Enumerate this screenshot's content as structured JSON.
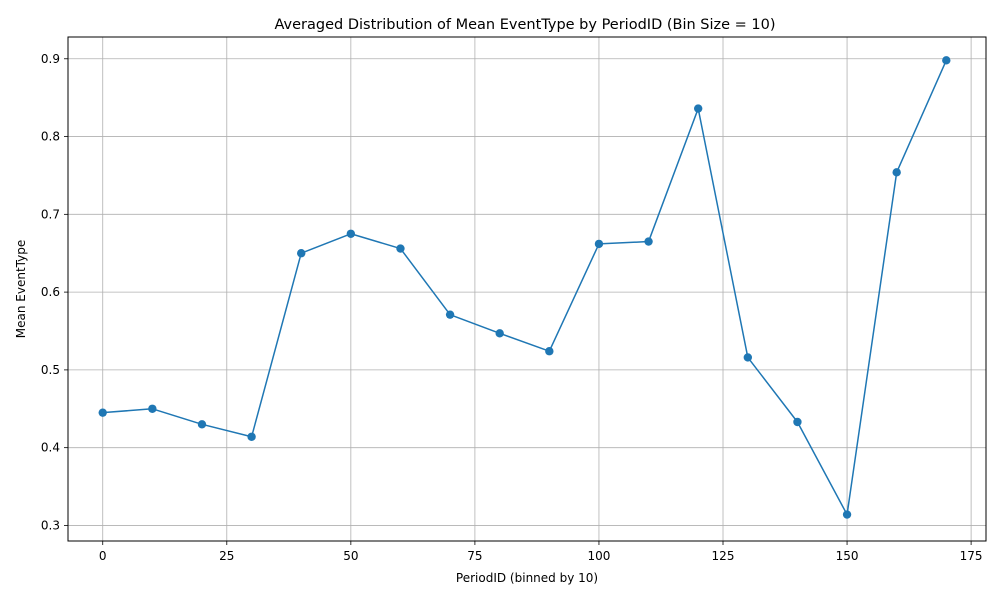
{
  "chart_data": {
    "type": "line",
    "title": "Averaged Distribution of Mean EventType by PeriodID (Bin Size = 10)",
    "xlabel": "PeriodID (binned by 10)",
    "ylabel": "Mean EventType",
    "xlim": [
      -7,
      178
    ],
    "ylim": [
      0.28,
      0.928
    ],
    "xticks": [
      0,
      25,
      50,
      75,
      100,
      125,
      150,
      175
    ],
    "yticks": [
      0.3,
      0.4,
      0.5,
      0.6,
      0.7,
      0.8,
      0.9
    ],
    "grid": true,
    "series_color": "#1f77b4",
    "marker": "circle",
    "x": [
      0,
      10,
      20,
      30,
      40,
      50,
      60,
      70,
      80,
      90,
      100,
      110,
      120,
      130,
      140,
      150,
      160,
      170
    ],
    "y": [
      0.445,
      0.45,
      0.43,
      0.414,
      0.65,
      0.675,
      0.656,
      0.571,
      0.547,
      0.524,
      0.662,
      0.665,
      0.836,
      0.516,
      0.433,
      0.314,
      0.754,
      0.898
    ]
  }
}
